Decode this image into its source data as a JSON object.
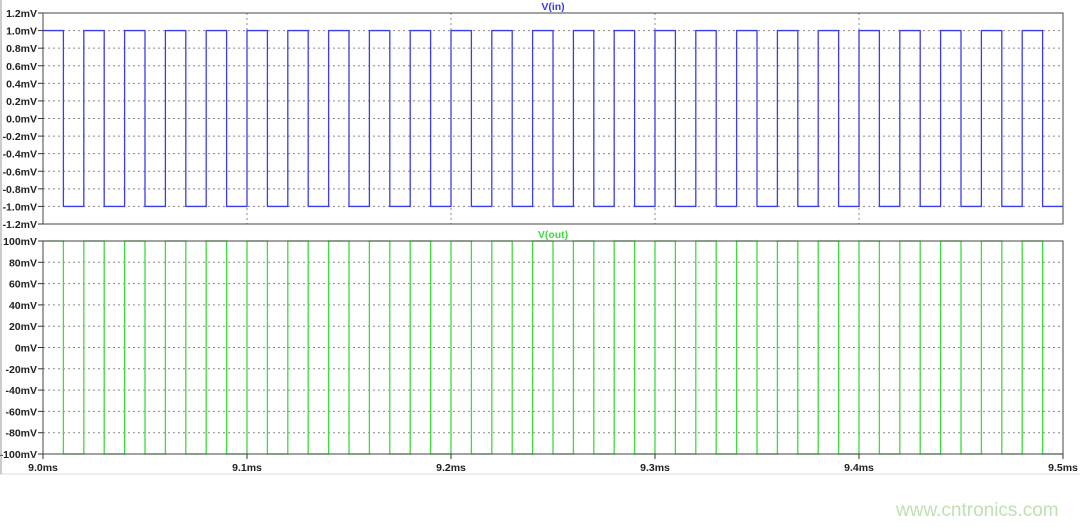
{
  "chart_data": [
    {
      "type": "line",
      "title": "V(in)",
      "color": "#3b3bf0",
      "xlim": [
        9.0,
        9.5
      ],
      "ylim": [
        -1.2,
        1.2
      ],
      "yunit": "mV",
      "yticks": [
        "1.2mV",
        "1.0mV",
        "0.8mV",
        "0.6mV",
        "0.4mV",
        "0.2mV",
        "0.0mV",
        "-0.2mV",
        "-0.4mV",
        "-0.6mV",
        "-0.8mV",
        "-1.0mV",
        "-1.2mV"
      ],
      "grid": true,
      "waveform": "square",
      "period_ms": 0.02,
      "high": 1.0,
      "low": -1.0,
      "starts": "high"
    },
    {
      "type": "line",
      "title": "V(out)",
      "color": "#3ddc3d",
      "xlim": [
        9.0,
        9.5
      ],
      "ylim": [
        -100,
        100
      ],
      "yunit": "mV",
      "yticks": [
        "100mV",
        "80mV",
        "60mV",
        "40mV",
        "20mV",
        "0mV",
        "-20mV",
        "-40mV",
        "-60mV",
        "-80mV",
        "-100mV"
      ],
      "xticks": [
        "9.0ms",
        "9.1ms",
        "9.2ms",
        "9.3ms",
        "9.4ms",
        "9.5ms"
      ],
      "grid": true,
      "waveform": "square",
      "period_ms": 0.02,
      "high": 100,
      "low": -100,
      "starts": "high"
    }
  ],
  "watermark": "www.cntronics.com"
}
